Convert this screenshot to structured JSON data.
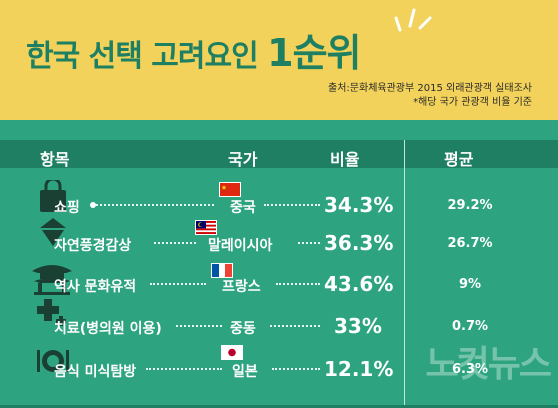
{
  "title": {
    "main": "한국 선택 고려요인",
    "rank": "1순위"
  },
  "source": {
    "line1": "출처:문화체육관광부 2015 외래관광객 실태조사",
    "line2": "*해당 국가 관광객 비율 기준"
  },
  "watermark": "노컷뉴스",
  "colors": {
    "header_bg": "#f2d25a",
    "body_bg": "#2da37f",
    "accent": "#1f7f63"
  },
  "chart_data": {
    "type": "table",
    "columns": [
      "항목",
      "국가",
      "비율",
      "평균"
    ],
    "rows": [
      {
        "item": "쇼핑",
        "icon": "shopping-bag-icon",
        "country": "중국",
        "flag": "china",
        "ratio": "34.3%",
        "ratio_value": 34.3,
        "average": "29.2%",
        "average_value": 29.2
      },
      {
        "item": "자연풍경감상",
        "icon": "tree-icon",
        "country": "말레이시아",
        "flag": "malaysia",
        "ratio": "36.3%",
        "ratio_value": 36.3,
        "average": "26.7%",
        "average_value": 26.7
      },
      {
        "item": "역사 문화유적",
        "icon": "palace-icon",
        "country": "프랑스",
        "flag": "france",
        "ratio": "43.6%",
        "ratio_value": 43.6,
        "average": "9%",
        "average_value": 9
      },
      {
        "item": "치료(병의원 이용)",
        "icon": "medical-cross-icon",
        "country": "중동",
        "flag": "",
        "ratio": "33%",
        "ratio_value": 33,
        "average": "0.7%",
        "average_value": 0.7
      },
      {
        "item": "음식 미식탐방",
        "icon": "plate-icon",
        "country": "일본",
        "flag": "japan",
        "ratio": "12.1%",
        "ratio_value": 12.1,
        "average": "6.3%",
        "average_value": 6.3
      }
    ]
  }
}
